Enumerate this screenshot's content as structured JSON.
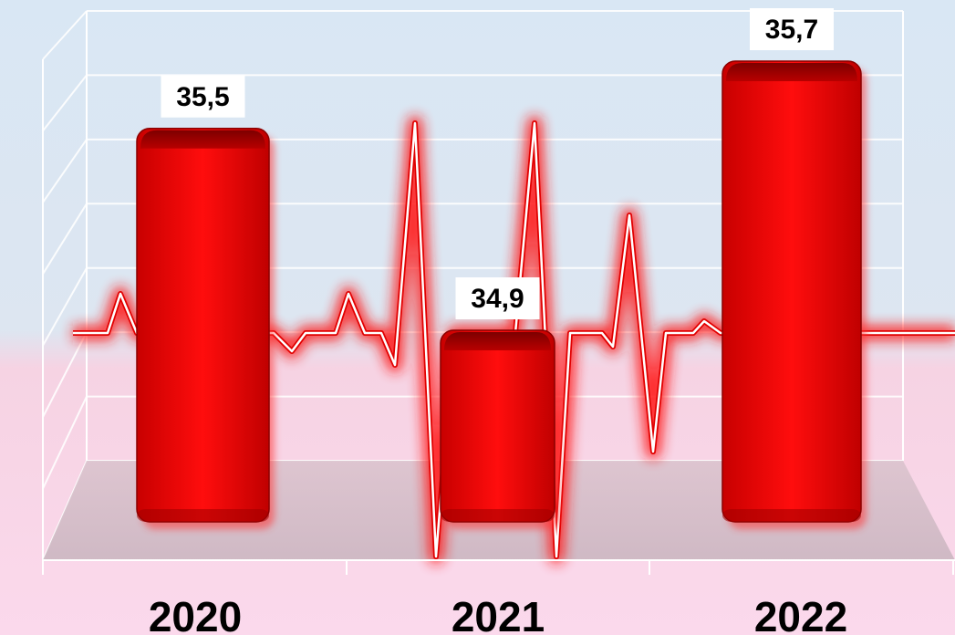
{
  "chart_data": {
    "type": "bar",
    "categories": [
      "2020",
      "2021",
      "2022"
    ],
    "values": [
      35.5,
      34.9,
      35.7
    ],
    "value_labels": [
      "35,5",
      "34,9",
      "35,7"
    ],
    "title": "",
    "xlabel": "",
    "ylabel": "",
    "grid": true,
    "legend": "none",
    "colors": {
      "bar": "#e00000",
      "bar_dark": "#9a0000",
      "pulse": "#ff1a1a",
      "background_top": "#d7e6f4",
      "background_bottom": "#fbd6ea"
    }
  }
}
